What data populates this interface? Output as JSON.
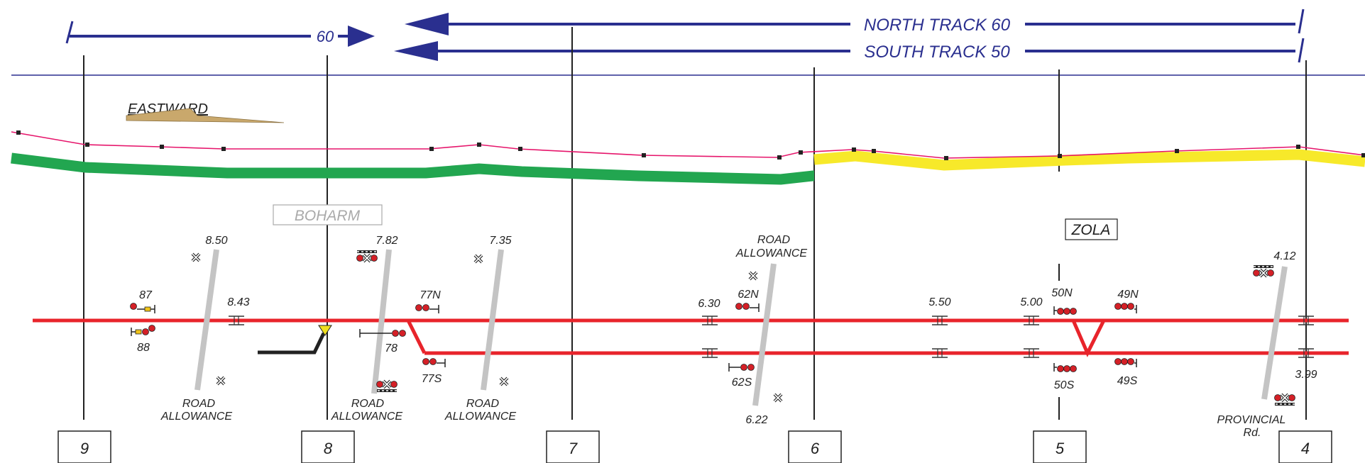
{
  "banner": {
    "left_speed": "60",
    "north_track": "NORTH TRACK 60",
    "south_track": "SOUTH TRACK 50"
  },
  "direction": {
    "label": "EASTWARD"
  },
  "stations": {
    "boharm": "BOHARM",
    "zola": "ZOLA"
  },
  "crossings": {
    "c850": {
      "mileage": "8.50",
      "line1": "ROAD",
      "line2": "ALLOWANCE"
    },
    "c782": {
      "mileage": "7.82",
      "line1": "ROAD",
      "line2": "ALLOWANCE"
    },
    "c735": {
      "mileage": "7.35",
      "line1": "ROAD",
      "line2": "ALLOWANCE"
    },
    "c630": {
      "line1": "ROAD",
      "line2": "ALLOWANCE",
      "mileage_bottom": "6.22"
    },
    "c412": {
      "mileage": "4.12",
      "line1": "PROVINCIAL",
      "line2": "Rd."
    }
  },
  "mileages": {
    "m843": "8.43",
    "m630": "6.30",
    "m550": "5.50",
    "m500": "5.00",
    "m399": "3.99"
  },
  "signals": {
    "s87": "87",
    "s88": "88",
    "s77N": "77N",
    "s78": "78",
    "s77S": "77S",
    "s62N": "62N",
    "s62S": "62S",
    "s50N": "50N",
    "s50S": "50S",
    "s49N": "49N",
    "s49S": "49S"
  },
  "mileposts": [
    "9",
    "8",
    "7",
    "6",
    "5",
    "4"
  ],
  "colors": {
    "banner_blue": "#2a2f8f",
    "track_red": "#e8242b",
    "profile_green": "#22a650",
    "profile_yellow": "#f7e92a",
    "profile_line": "#e6156b",
    "arrow_tan": "#c9a86c",
    "crossing_grey": "#c4c4c4",
    "signal_red": "#d42027",
    "signal_yellow": "#f0c419"
  }
}
